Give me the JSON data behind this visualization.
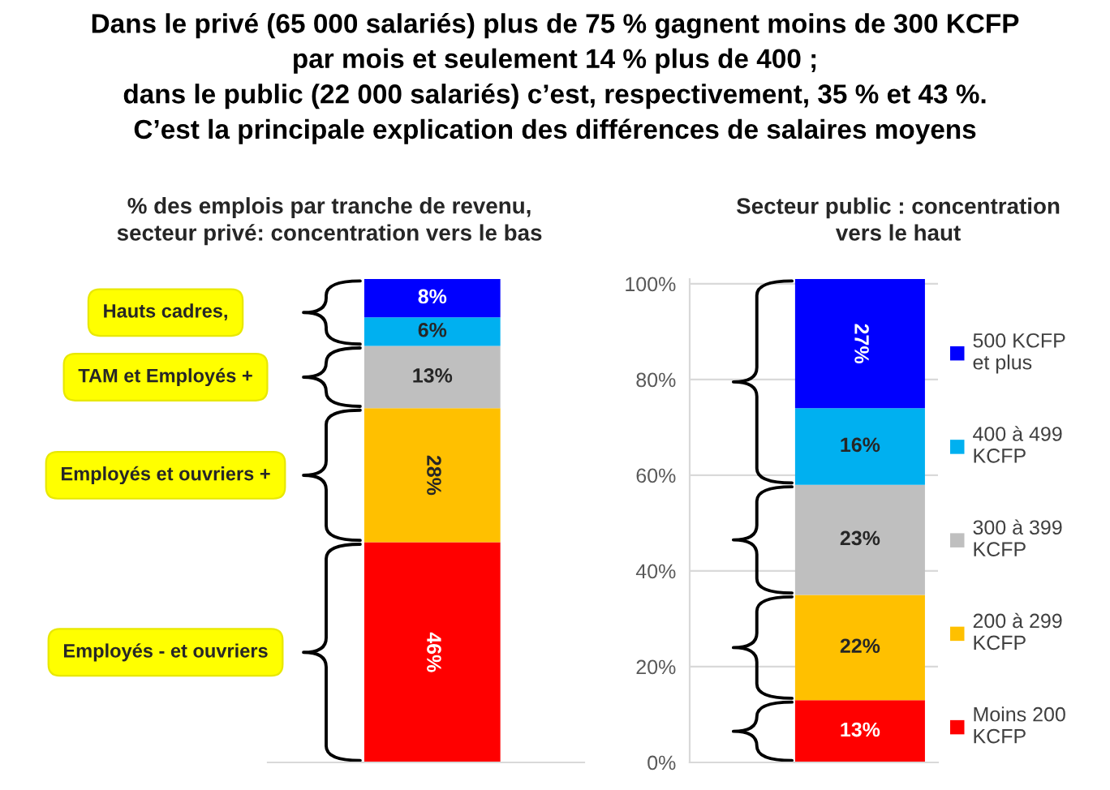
{
  "chart_data": [
    {
      "type": "bar",
      "title": "Dans le privé (65 000 salariés) plus de 75 % gagnent moins de 300 KCFP\npar mois et seulement 14 % plus de 400 ;\ndans le public (22 000 salariés) c’est, respectivement, 35 % et 43 %.\nC’est la principale explication des différences de salaires moyens",
      "subtitle": "% des emplois par tranche de revenu,\nsecteur privé: concentration vers le bas",
      "categories": [
        null
      ],
      "stacked": true,
      "tick_labels": false,
      "series": [
        {
          "color": "#ff0000",
          "values": [
            46
          ],
          "value_labels": [
            "46%"
          ]
        },
        {
          "color": "#ffc000",
          "values": [
            28
          ],
          "value_labels": [
            "28%"
          ]
        },
        {
          "color": "#bfbfbf",
          "values": [
            13
          ],
          "value_labels": [
            "13%"
          ]
        },
        {
          "color": "#00b0f0",
          "values": [
            6
          ],
          "value_labels": [
            "6%"
          ]
        },
        {
          "color": "#0000ff",
          "values": [
            8
          ],
          "value_labels": [
            "8%"
          ]
        }
      ],
      "annotations": [
        "Hauts cadres,",
        "TAM et Employés +",
        "Employés et ouvriers +",
        "Employés - et ouvriers"
      ]
    },
    {
      "type": "bar",
      "title": "Secteur public : concentration\nvers le haut",
      "categories": [
        null
      ],
      "stacked": true,
      "ylim": [
        0,
        101
      ],
      "yticks": [
        {
          "value": 0,
          "label": "0%"
        },
        {
          "value": 20,
          "label": "20%"
        },
        {
          "value": 40,
          "label": "40%"
        },
        {
          "value": 60,
          "label": "60%"
        },
        {
          "value": 80,
          "label": "80%"
        },
        {
          "value": 100,
          "label": "100%"
        }
      ],
      "grid": "y",
      "tick_labels": "y",
      "legend": "right",
      "series": [
        {
          "name": "Moins 200 KCFP",
          "color": "#ff0000",
          "values": [
            13
          ],
          "value_labels": [
            "13%"
          ]
        },
        {
          "name": "200 à 299 KCFP",
          "color": "#ffc000",
          "values": [
            22
          ],
          "value_labels": [
            "22%"
          ]
        },
        {
          "name": "300 à 399 KCFP",
          "color": "#bfbfbf",
          "values": [
            23
          ],
          "value_labels": [
            "23%"
          ]
        },
        {
          "name": "400 à 499 KCFP",
          "color": "#00b0f0",
          "values": [
            16
          ],
          "value_labels": [
            "16%"
          ]
        },
        {
          "name": "500 KCFP et plus",
          "color": "#0000ff",
          "values": [
            27
          ],
          "value_labels": [
            "27%"
          ]
        }
      ]
    }
  ]
}
